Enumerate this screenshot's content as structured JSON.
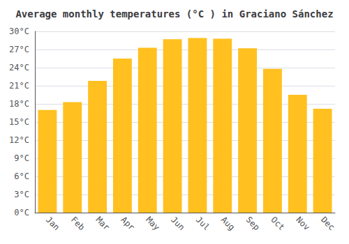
{
  "chart_data": {
    "type": "bar",
    "title": "Average monthly temperatures (°C ) in Graciano Sánchez",
    "categories": [
      "Jan",
      "Feb",
      "Mar",
      "Apr",
      "May",
      "Jun",
      "Jul",
      "Aug",
      "Sep",
      "Oct",
      "Nov",
      "Dec"
    ],
    "values": [
      17.0,
      18.3,
      21.8,
      25.5,
      27.3,
      28.7,
      28.9,
      28.8,
      27.2,
      23.8,
      19.5,
      17.2
    ],
    "color": "#FFC020",
    "ylim": [
      0,
      30
    ],
    "yticks": [
      {
        "value": 0,
        "label": "0°C"
      },
      {
        "value": 3,
        "label": "3°C"
      },
      {
        "value": 6,
        "label": "6°C"
      },
      {
        "value": 9,
        "label": "9°C"
      },
      {
        "value": 12,
        "label": "12°C"
      },
      {
        "value": 15,
        "label": "15°C"
      },
      {
        "value": 18,
        "label": "18°C"
      },
      {
        "value": 21,
        "label": "21°C"
      },
      {
        "value": 24,
        "label": "24°C"
      },
      {
        "value": 27,
        "label": "27°C"
      },
      {
        "value": 30,
        "label": "30°C"
      }
    ],
    "grid": true
  }
}
